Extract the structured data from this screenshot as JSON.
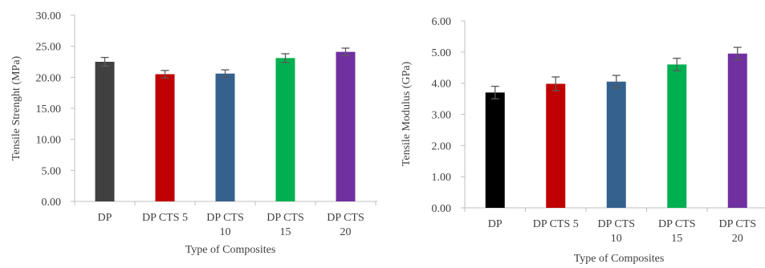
{
  "chart_data": [
    {
      "type": "bar",
      "title": "",
      "xlabel": "Type of Composites",
      "ylabel": "Tensile Strenght (MPa)",
      "ylim": [
        0,
        30
      ],
      "yticks": [
        "0.00",
        "5.00",
        "10.00",
        "15.00",
        "20.00",
        "25.00",
        "30.00"
      ],
      "categories": [
        "DP",
        "DP CTS 5",
        "DP CTS 10",
        "DP CTS 15",
        "DP CTS 20"
      ],
      "category_lines": [
        [
          "DP"
        ],
        [
          "DP CTS 5"
        ],
        [
          "DP CTS",
          "10"
        ],
        [
          "DP CTS",
          "15"
        ],
        [
          "DP CTS",
          "20"
        ]
      ],
      "values": [
        22.5,
        20.5,
        20.6,
        23.1,
        24.1
      ],
      "errors": [
        0.7,
        0.6,
        0.6,
        0.7,
        0.6
      ],
      "colors": [
        "#404040",
        "#c00000",
        "#35618f",
        "#00b050",
        "#7030a0"
      ],
      "grid": false,
      "legend": "none"
    },
    {
      "type": "bar",
      "title": "",
      "xlabel": "Type of Composites",
      "ylabel": "Tensile Modulus (GPa)",
      "ylim": [
        0,
        6
      ],
      "yticks": [
        "0.00",
        "1.00",
        "2.00",
        "3.00",
        "4.00",
        "5.00",
        "6.00"
      ],
      "categories": [
        "DP",
        "DP CTS 5",
        "DP CTS 10",
        "DP CTS 15",
        "DP CTS 20"
      ],
      "category_lines": [
        [
          "DP"
        ],
        [
          "DP CTS 5"
        ],
        [
          "DP CTS",
          "10"
        ],
        [
          "DP CTS",
          "15"
        ],
        [
          "DP CTS",
          "20"
        ]
      ],
      "values": [
        3.7,
        3.98,
        4.05,
        4.6,
        4.95
      ],
      "errors": [
        0.2,
        0.22,
        0.2,
        0.2,
        0.2
      ],
      "colors": [
        "#000000",
        "#c00000",
        "#35618f",
        "#00b050",
        "#7030a0"
      ],
      "grid": false,
      "legend": "none"
    }
  ]
}
